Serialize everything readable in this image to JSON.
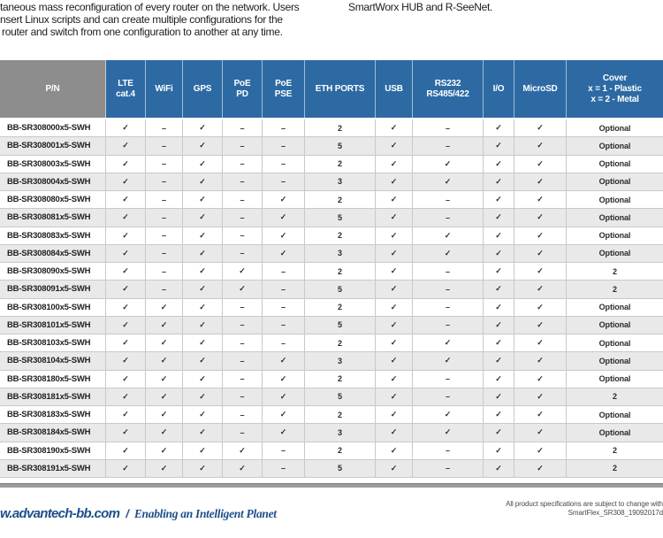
{
  "intro": {
    "left_lines": [
      "taneous mass reconfiguration of every router on the network. Users",
      "nsert Linux scripts and can create multiple configurations for the",
      "router and switch from one configuration to another at any time."
    ],
    "right_line": "SmartWorx HUB and R-SeeNet."
  },
  "table": {
    "columns": [
      {
        "key": "pn",
        "label_lines": [
          "P/N"
        ]
      },
      {
        "key": "lte",
        "label_lines": [
          "LTE",
          "cat.4"
        ]
      },
      {
        "key": "wifi",
        "label_lines": [
          "WiFi"
        ]
      },
      {
        "key": "gps",
        "label_lines": [
          "GPS"
        ]
      },
      {
        "key": "poe-pd",
        "label_lines": [
          "PoE",
          "PD"
        ]
      },
      {
        "key": "poe-pse",
        "label_lines": [
          "PoE",
          "PSE"
        ]
      },
      {
        "key": "eth-ports",
        "label_lines": [
          "ETH PORTS"
        ]
      },
      {
        "key": "usb",
        "label_lines": [
          "USB"
        ]
      },
      {
        "key": "rs232",
        "label_lines": [
          "RS232",
          "RS485/422"
        ]
      },
      {
        "key": "io",
        "label_lines": [
          "I/O"
        ]
      },
      {
        "key": "microsd",
        "label_lines": [
          "MicroSD"
        ]
      },
      {
        "key": "cover",
        "label_lines": [
          "Cover",
          "x = 1 - Plastic",
          "x = 2 - Metal"
        ]
      }
    ],
    "rows": [
      {
        "pn": "BB-SR308000x5-SWH",
        "cells": [
          "✓",
          "–",
          "✓",
          "–",
          "–",
          "2",
          "✓",
          "–",
          "✓",
          "✓",
          "Optional"
        ]
      },
      {
        "pn": "BB-SR308001x5-SWH",
        "cells": [
          "✓",
          "–",
          "✓",
          "–",
          "–",
          "5",
          "✓",
          "–",
          "✓",
          "✓",
          "Optional"
        ]
      },
      {
        "pn": "BB-SR308003x5-SWH",
        "cells": [
          "✓",
          "–",
          "✓",
          "–",
          "–",
          "2",
          "✓",
          "✓",
          "✓",
          "✓",
          "Optional"
        ]
      },
      {
        "pn": "BB-SR308004x5-SWH",
        "cells": [
          "✓",
          "–",
          "✓",
          "–",
          "–",
          "3",
          "✓",
          "✓",
          "✓",
          "✓",
          "Optional"
        ]
      },
      {
        "pn": "BB-SR308080x5-SWH",
        "cells": [
          "✓",
          "–",
          "✓",
          "–",
          "✓",
          "2",
          "✓",
          "–",
          "✓",
          "✓",
          "Optional"
        ]
      },
      {
        "pn": "BB-SR308081x5-SWH",
        "cells": [
          "✓",
          "–",
          "✓",
          "–",
          "✓",
          "5",
          "✓",
          "–",
          "✓",
          "✓",
          "Optional"
        ]
      },
      {
        "pn": "BB-SR308083x5-SWH",
        "cells": [
          "✓",
          "–",
          "✓",
          "–",
          "✓",
          "2",
          "✓",
          "✓",
          "✓",
          "✓",
          "Optional"
        ]
      },
      {
        "pn": "BB-SR308084x5-SWH",
        "cells": [
          "✓",
          "–",
          "✓",
          "–",
          "✓",
          "3",
          "✓",
          "✓",
          "✓",
          "✓",
          "Optional"
        ]
      },
      {
        "pn": "BB-SR308090x5-SWH",
        "cells": [
          "✓",
          "–",
          "✓",
          "✓",
          "–",
          "2",
          "✓",
          "–",
          "✓",
          "✓",
          "2"
        ]
      },
      {
        "pn": "BB-SR308091x5-SWH",
        "cells": [
          "✓",
          "–",
          "✓",
          "✓",
          "–",
          "5",
          "✓",
          "–",
          "✓",
          "✓",
          "2"
        ]
      },
      {
        "pn": "BB-SR308100x5-SWH",
        "cells": [
          "✓",
          "✓",
          "✓",
          "–",
          "–",
          "2",
          "✓",
          "–",
          "✓",
          "✓",
          "Optional"
        ]
      },
      {
        "pn": "BB-SR308101x5-SWH",
        "cells": [
          "✓",
          "✓",
          "✓",
          "–",
          "–",
          "5",
          "✓",
          "–",
          "✓",
          "✓",
          "Optional"
        ]
      },
      {
        "pn": "BB-SR308103x5-SWH",
        "cells": [
          "✓",
          "✓",
          "✓",
          "–",
          "–",
          "2",
          "✓",
          "✓",
          "✓",
          "✓",
          "Optional"
        ]
      },
      {
        "pn": "BB-SR308104x5-SWH",
        "cells": [
          "✓",
          "✓",
          "✓",
          "–",
          "✓",
          "3",
          "✓",
          "✓",
          "✓",
          "✓",
          "Optional"
        ]
      },
      {
        "pn": "BB-SR308180x5-SWH",
        "cells": [
          "✓",
          "✓",
          "✓",
          "–",
          "✓",
          "2",
          "✓",
          "–",
          "✓",
          "✓",
          "Optional"
        ]
      },
      {
        "pn": "BB-SR308181x5-SWH",
        "cells": [
          "✓",
          "✓",
          "✓",
          "–",
          "✓",
          "5",
          "✓",
          "–",
          "✓",
          "✓",
          "2"
        ]
      },
      {
        "pn": "BB-SR308183x5-SWH",
        "cells": [
          "✓",
          "✓",
          "✓",
          "–",
          "✓",
          "2",
          "✓",
          "✓",
          "✓",
          "✓",
          "Optional"
        ]
      },
      {
        "pn": "BB-SR308184x5-SWH",
        "cells": [
          "✓",
          "✓",
          "✓",
          "–",
          "✓",
          "3",
          "✓",
          "✓",
          "✓",
          "✓",
          "Optional"
        ]
      },
      {
        "pn": "BB-SR308190x5-SWH",
        "cells": [
          "✓",
          "✓",
          "✓",
          "✓",
          "–",
          "2",
          "✓",
          "–",
          "✓",
          "✓",
          "2"
        ]
      },
      {
        "pn": "BB-SR308191x5-SWH",
        "cells": [
          "✓",
          "✓",
          "✓",
          "✓",
          "–",
          "5",
          "✓",
          "–",
          "✓",
          "✓",
          "2"
        ]
      }
    ]
  },
  "footer": {
    "website": "w.advantech-bb.com",
    "slash": "/",
    "tagline": "Enabling an Intelligent Planet",
    "disclaimer_line1": "All product specifications are subject to change with",
    "doc_id": "SmartFlex_SR308_19092017d"
  },
  "colors": {
    "header_blue": "#2d6aa3",
    "header_gray": "#8d8d8d",
    "row_alt": "#e9e9e9",
    "footer_blue": "#1d4f8a",
    "divider_gray": "#9b9b9b"
  }
}
